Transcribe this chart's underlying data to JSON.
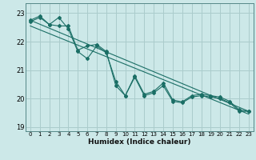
{
  "xlabel": "Humidex (Indice chaleur)",
  "bg_color": "#cce8e8",
  "grid_color": "#aacccc",
  "line_color": "#1a6e65",
  "xlim": [
    -0.5,
    23.5
  ],
  "ylim": [
    18.85,
    23.35
  ],
  "yticks": [
    19,
    20,
    21,
    22,
    23
  ],
  "xticks": [
    0,
    1,
    2,
    3,
    4,
    5,
    6,
    7,
    8,
    9,
    10,
    11,
    12,
    13,
    14,
    15,
    16,
    17,
    18,
    19,
    20,
    21,
    22,
    23
  ],
  "line1_x": [
    0,
    1,
    2,
    3,
    4,
    5,
    6,
    7,
    8,
    9,
    10,
    11,
    12,
    13,
    14,
    15,
    16,
    17,
    18,
    19,
    20,
    21,
    22,
    23
  ],
  "line1_y": [
    22.75,
    22.9,
    22.6,
    22.85,
    22.45,
    21.65,
    21.4,
    21.85,
    21.6,
    20.6,
    20.1,
    20.8,
    20.15,
    20.25,
    20.55,
    19.95,
    19.88,
    20.1,
    20.15,
    20.1,
    20.05,
    19.9,
    19.6,
    19.55
  ],
  "line2_x": [
    0,
    1,
    2,
    3,
    4,
    5,
    6,
    7,
    8,
    9,
    10,
    11,
    12,
    13,
    14,
    15,
    16,
    17,
    18,
    19,
    20,
    21,
    22,
    23
  ],
  "line2_y": [
    22.7,
    22.85,
    22.6,
    22.55,
    22.55,
    21.7,
    21.85,
    21.9,
    21.65,
    20.45,
    20.1,
    20.75,
    20.1,
    20.2,
    20.45,
    19.9,
    19.85,
    20.05,
    20.1,
    20.05,
    20.0,
    19.85,
    19.55,
    19.55
  ],
  "line3_x": [
    0,
    23
  ],
  "line3_y": [
    22.75,
    19.55
  ],
  "line4_x": [
    0,
    23
  ],
  "line4_y": [
    22.55,
    19.45
  ]
}
